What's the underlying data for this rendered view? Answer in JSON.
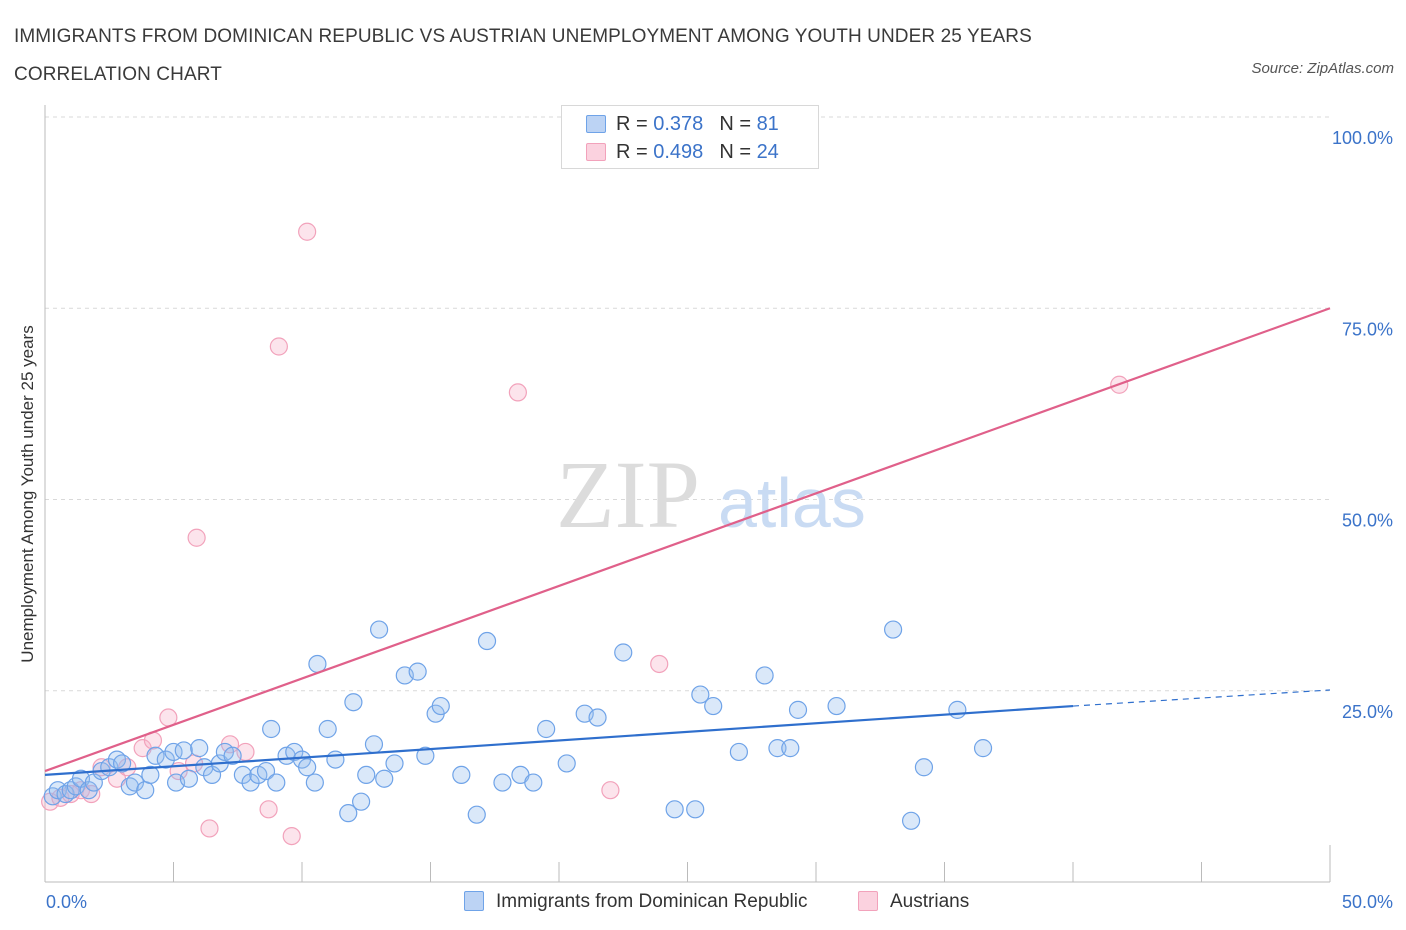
{
  "title": "IMMIGRANTS FROM DOMINICAN REPUBLIC VS AUSTRIAN UNEMPLOYMENT AMONG YOUTH UNDER 25 YEARS CORRELATION CHART",
  "source": "Source: ZipAtlas.com",
  "watermark": {
    "zip": "ZIP",
    "atlas": "atlas"
  },
  "legend": [
    {
      "r_label": "R =",
      "r_value": "0.378",
      "n_label": "N =",
      "n_value": "81"
    },
    {
      "r_label": "R =",
      "r_value": "0.498",
      "n_label": "N =",
      "n_value": "24"
    }
  ],
  "chart_data": {
    "type": "scatter",
    "title": "IMMIGRANTS FROM DOMINICAN REPUBLIC VS AUSTRIAN UNEMPLOYMENT AMONG YOUTH UNDER 25 YEARS CORRELATION CHART",
    "xlabel": "",
    "ylabel": "Unemployment Among Youth under 25 years",
    "xlim": [
      0,
      50
    ],
    "ylim": [
      0,
      100
    ],
    "x_tick_labels": [
      {
        "value": 0,
        "label": "0.0%"
      },
      {
        "value": 50,
        "label": "50.0%"
      }
    ],
    "y_tick_labels": [
      {
        "value": 25,
        "label": "25.0%"
      },
      {
        "value": 50,
        "label": "50.0%"
      },
      {
        "value": 75,
        "label": "75.0%"
      },
      {
        "value": 100,
        "label": "100.0%"
      }
    ],
    "grid": true,
    "legend_position": "top-center",
    "series": [
      {
        "name": "Immigrants from Dominican Republic",
        "color": "#6fa3e8",
        "line_color": "#2f6fcd",
        "trend": {
          "x0": 0,
          "y0": 14.0,
          "x1": 40,
          "y1": 23.0,
          "dash_to_x": 50,
          "dash_to_y": 25.1
        },
        "points": [
          [
            0.3,
            11.2
          ],
          [
            0.5,
            12.0
          ],
          [
            0.8,
            11.5
          ],
          [
            1.0,
            12.0
          ],
          [
            1.2,
            12.5
          ],
          [
            1.4,
            13.5
          ],
          [
            1.7,
            12.0
          ],
          [
            1.9,
            13.0
          ],
          [
            2.2,
            14.5
          ],
          [
            2.5,
            15.0
          ],
          [
            2.8,
            16.0
          ],
          [
            3.0,
            15.5
          ],
          [
            3.3,
            12.5
          ],
          [
            3.5,
            13.0
          ],
          [
            3.9,
            12.0
          ],
          [
            4.1,
            14.0
          ],
          [
            4.3,
            16.5
          ],
          [
            4.7,
            16.0
          ],
          [
            5.0,
            17.0
          ],
          [
            5.1,
            13.0
          ],
          [
            5.4,
            17.2
          ],
          [
            5.6,
            13.5
          ],
          [
            6.0,
            17.5
          ],
          [
            6.2,
            15.0
          ],
          [
            6.5,
            14.0
          ],
          [
            6.8,
            15.5
          ],
          [
            7.0,
            17.0
          ],
          [
            7.3,
            16.5
          ],
          [
            7.7,
            14.0
          ],
          [
            8.0,
            13.0
          ],
          [
            8.3,
            14.0
          ],
          [
            8.6,
            14.5
          ],
          [
            8.8,
            20.0
          ],
          [
            9.0,
            13.0
          ],
          [
            9.4,
            16.5
          ],
          [
            9.7,
            17.0
          ],
          [
            10.0,
            16.0
          ],
          [
            10.2,
            15.0
          ],
          [
            10.5,
            13.0
          ],
          [
            10.6,
            28.5
          ],
          [
            11.0,
            20.0
          ],
          [
            11.3,
            16.0
          ],
          [
            11.8,
            9.0
          ],
          [
            12.0,
            23.5
          ],
          [
            12.3,
            10.5
          ],
          [
            12.5,
            14.0
          ],
          [
            12.8,
            18.0
          ],
          [
            13.0,
            33.0
          ],
          [
            13.2,
            13.5
          ],
          [
            13.6,
            15.5
          ],
          [
            14.0,
            27.0
          ],
          [
            14.5,
            27.5
          ],
          [
            14.8,
            16.5
          ],
          [
            15.2,
            22.0
          ],
          [
            15.4,
            23.0
          ],
          [
            16.2,
            14.0
          ],
          [
            16.8,
            8.8
          ],
          [
            17.2,
            31.5
          ],
          [
            17.8,
            13.0
          ],
          [
            18.5,
            14.0
          ],
          [
            19.0,
            13.0
          ],
          [
            19.5,
            20.0
          ],
          [
            20.3,
            15.5
          ],
          [
            21.0,
            22.0
          ],
          [
            21.5,
            21.5
          ],
          [
            22.5,
            30.0
          ],
          [
            24.5,
            9.5
          ],
          [
            25.3,
            9.5
          ],
          [
            25.5,
            24.5
          ],
          [
            26.0,
            23.0
          ],
          [
            27.0,
            17.0
          ],
          [
            28.0,
            27.0
          ],
          [
            28.5,
            17.5
          ],
          [
            29.0,
            17.5
          ],
          [
            29.3,
            22.5
          ],
          [
            30.8,
            23.0
          ],
          [
            33.0,
            33.0
          ],
          [
            33.7,
            8.0
          ],
          [
            34.2,
            15.0
          ],
          [
            35.5,
            22.5
          ],
          [
            36.5,
            17.5
          ]
        ]
      },
      {
        "name": "Austrians",
        "color": "#f2a2bb",
        "line_color": "#e0608a",
        "trend": {
          "x0": 0,
          "y0": 14.5,
          "x1": 50,
          "y1": 75.0
        },
        "points": [
          [
            0.2,
            10.5
          ],
          [
            0.6,
            11.0
          ],
          [
            1.0,
            11.5
          ],
          [
            1.4,
            12.0
          ],
          [
            1.8,
            11.5
          ],
          [
            2.2,
            15.0
          ],
          [
            2.8,
            13.5
          ],
          [
            3.2,
            15.0
          ],
          [
            3.8,
            17.5
          ],
          [
            4.2,
            18.5
          ],
          [
            4.8,
            21.5
          ],
          [
            5.2,
            14.5
          ],
          [
            5.8,
            15.5
          ],
          [
            5.9,
            45.0
          ],
          [
            6.4,
            7.0
          ],
          [
            7.2,
            18.0
          ],
          [
            7.8,
            17.0
          ],
          [
            8.7,
            9.5
          ],
          [
            9.1,
            70.0
          ],
          [
            9.6,
            6.0
          ],
          [
            10.2,
            85.0
          ],
          [
            18.4,
            64.0
          ],
          [
            22.0,
            12.0
          ],
          [
            23.9,
            28.5
          ],
          [
            41.8,
            65.0
          ]
        ]
      }
    ]
  },
  "bottom_legend": [
    {
      "label": "Immigrants from Dominican Republic",
      "color": "#6fa3e8"
    },
    {
      "label": "Austrians",
      "color": "#f2a2bb"
    }
  ]
}
